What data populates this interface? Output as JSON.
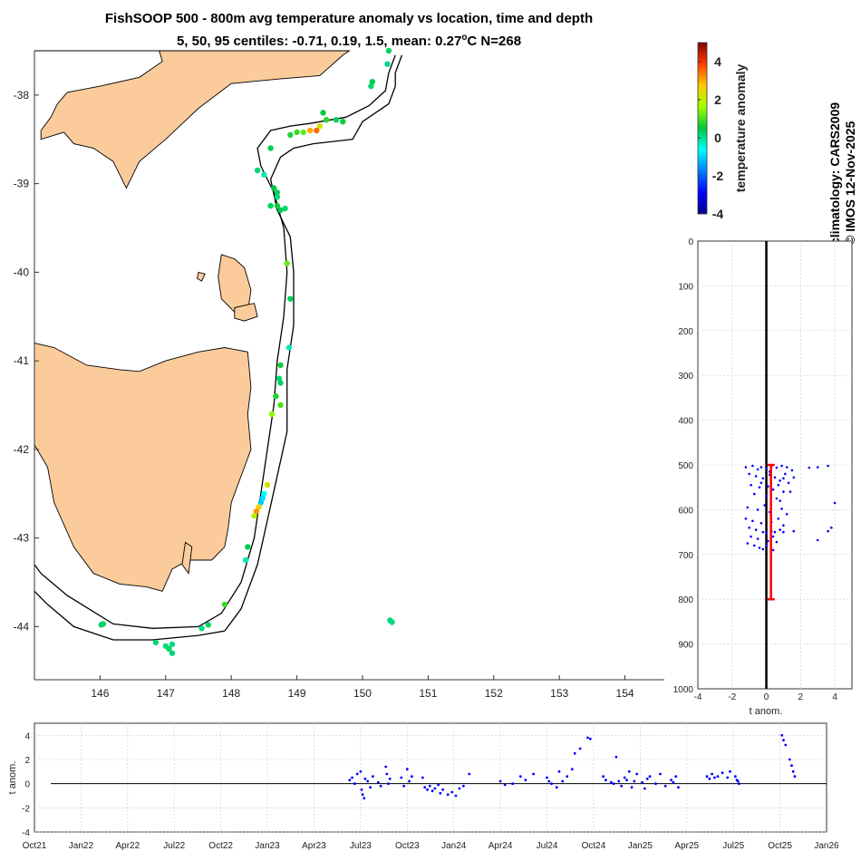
{
  "title": {
    "line1": "FishSOOP 500 - 800m avg temperature anomaly vs location, time and depth",
    "line2_prefix": "5, 50, 95 centiles: -0.71, 0.19, 1.5, mean: 0.27",
    "line2_degree": "o",
    "line2_suffix": "C N=268"
  },
  "credits": {
    "climatology": "climatology: CARS2009",
    "copyright": "© IMOS 12-Nov-2025"
  },
  "colors": {
    "land": "#fbcb9b",
    "coast": "#000000",
    "points_depth": "#0000ff",
    "points_time": "#0000ff",
    "centile_bar": "#ff0000",
    "zero_line": "#000000"
  },
  "chart_data": [
    {
      "type": "scatter",
      "name": "map",
      "xlim": [
        145,
        154.6
      ],
      "ylim": [
        -44.6,
        -37.5
      ],
      "xticks": [
        146,
        147,
        148,
        149,
        150,
        151,
        152,
        153,
        154
      ],
      "yticks": [
        -38,
        -39,
        -40,
        -41,
        -42,
        -43,
        -44
      ],
      "colorbar": {
        "label": "temperature anomaly",
        "range": [
          -4,
          5
        ],
        "ticks": [
          -4,
          -2,
          0,
          2,
          4
        ]
      },
      "points": [
        {
          "lon": 150.4,
          "lat": -37.5,
          "t": 0.3
        },
        {
          "lon": 150.38,
          "lat": -37.65,
          "t": 0.1
        },
        {
          "lon": 150.15,
          "lat": -37.85,
          "t": 0.4
        },
        {
          "lon": 150.13,
          "lat": -37.9,
          "t": 0.2
        },
        {
          "lon": 149.7,
          "lat": -38.3,
          "t": 0.6
        },
        {
          "lon": 149.6,
          "lat": -38.28,
          "t": 0.3
        },
        {
          "lon": 149.45,
          "lat": -38.28,
          "t": 0.8
        },
        {
          "lon": 149.35,
          "lat": -38.35,
          "t": 2.2
        },
        {
          "lon": 149.3,
          "lat": -38.4,
          "t": 3.5
        },
        {
          "lon": 149.2,
          "lat": -38.4,
          "t": 3.0
        },
        {
          "lon": 149.1,
          "lat": -38.42,
          "t": 1.2
        },
        {
          "lon": 149.0,
          "lat": -38.42,
          "t": 0.9
        },
        {
          "lon": 148.9,
          "lat": -38.45,
          "t": 0.7
        },
        {
          "lon": 149.4,
          "lat": -38.2,
          "t": 0.5
        },
        {
          "lon": 148.6,
          "lat": -38.6,
          "t": 0.4
        },
        {
          "lon": 148.4,
          "lat": -38.85,
          "t": 0.2
        },
        {
          "lon": 148.5,
          "lat": -38.9,
          "t": -0.2
        },
        {
          "lon": 148.65,
          "lat": -39.05,
          "t": 0.5
        },
        {
          "lon": 148.7,
          "lat": -39.1,
          "t": 0.3
        },
        {
          "lon": 148.7,
          "lat": -39.15,
          "t": 0.1
        },
        {
          "lon": 148.7,
          "lat": -39.25,
          "t": 0.6
        },
        {
          "lon": 148.75,
          "lat": -39.3,
          "t": 0.4
        },
        {
          "lon": 148.82,
          "lat": -39.28,
          "t": 0.2
        },
        {
          "lon": 148.6,
          "lat": -39.25,
          "t": 0.3
        },
        {
          "lon": 148.85,
          "lat": -39.9,
          "t": 1.2
        },
        {
          "lon": 148.9,
          "lat": -40.3,
          "t": 0.3
        },
        {
          "lon": 148.88,
          "lat": -40.85,
          "t": -0.2
        },
        {
          "lon": 148.75,
          "lat": -41.05,
          "t": 0.6
        },
        {
          "lon": 148.73,
          "lat": -41.2,
          "t": 0.2
        },
        {
          "lon": 148.75,
          "lat": -41.25,
          "t": 0.3
        },
        {
          "lon": 148.68,
          "lat": -41.4,
          "t": 0.7
        },
        {
          "lon": 148.75,
          "lat": -41.5,
          "t": 1.0
        },
        {
          "lon": 148.62,
          "lat": -41.6,
          "t": 1.5
        },
        {
          "lon": 148.55,
          "lat": -42.4,
          "t": 2.3
        },
        {
          "lon": 148.5,
          "lat": -42.5,
          "t": -0.6
        },
        {
          "lon": 148.48,
          "lat": -42.55,
          "t": -0.9
        },
        {
          "lon": 148.45,
          "lat": -42.6,
          "t": -1.1
        },
        {
          "lon": 148.42,
          "lat": -42.65,
          "t": 2.6
        },
        {
          "lon": 148.38,
          "lat": -42.7,
          "t": 3.2
        },
        {
          "lon": 148.35,
          "lat": -42.75,
          "t": 2.0
        },
        {
          "lon": 148.25,
          "lat": -43.1,
          "t": 0.4
        },
        {
          "lon": 148.22,
          "lat": -43.25,
          "t": -0.2
        },
        {
          "lon": 147.9,
          "lat": -43.75,
          "t": 0.9
        },
        {
          "lon": 147.65,
          "lat": -43.98,
          "t": 0.3
        },
        {
          "lon": 147.55,
          "lat": -44.02,
          "t": 0.1
        },
        {
          "lon": 147.1,
          "lat": -44.2,
          "t": 0.1
        },
        {
          "lon": 147.05,
          "lat": -44.25,
          "t": 0.3
        },
        {
          "lon": 147.1,
          "lat": -44.3,
          "t": 0.2
        },
        {
          "lon": 147.0,
          "lat": -44.22,
          "t": 0.1
        },
        {
          "lon": 146.85,
          "lat": -44.18,
          "t": 0.2
        },
        {
          "lon": 146.05,
          "lat": -43.97,
          "t": 0.2
        },
        {
          "lon": 146.02,
          "lat": -43.98,
          "t": 0.3
        },
        {
          "lon": 150.42,
          "lat": -43.93,
          "t": 0.2
        },
        {
          "lon": 150.45,
          "lat": -43.95,
          "t": 0.1
        }
      ]
    },
    {
      "type": "scatter",
      "name": "depth-profile",
      "xlabel": "t anom.",
      "xlim": [
        -4,
        5
      ],
      "ylim": [
        0,
        1000
      ],
      "xticks": [
        -4,
        -2,
        0,
        2,
        4
      ],
      "yticks": [
        0,
        100,
        200,
        300,
        400,
        500,
        600,
        700,
        800,
        900,
        1000
      ],
      "centile_bar": {
        "x": 0.27,
        "y_top": 500,
        "y_bottom": 800
      },
      "points": [
        {
          "t": -1.2,
          "d": 505
        },
        {
          "t": -0.8,
          "d": 502
        },
        {
          "t": -0.5,
          "d": 510
        },
        {
          "t": -0.3,
          "d": 505
        },
        {
          "t": 0.0,
          "d": 508
        },
        {
          "t": 0.3,
          "d": 503
        },
        {
          "t": 0.6,
          "d": 506
        },
        {
          "t": 0.9,
          "d": 502
        },
        {
          "t": 1.2,
          "d": 505
        },
        {
          "t": 1.5,
          "d": 512
        },
        {
          "t": 2.5,
          "d": 506
        },
        {
          "t": 3.0,
          "d": 505
        },
        {
          "t": 3.6,
          "d": 502
        },
        {
          "t": -1.0,
          "d": 520
        },
        {
          "t": -0.6,
          "d": 525
        },
        {
          "t": -0.2,
          "d": 530
        },
        {
          "t": 0.2,
          "d": 522
        },
        {
          "t": 0.5,
          "d": 528
        },
        {
          "t": 0.8,
          "d": 535
        },
        {
          "t": 1.1,
          "d": 520
        },
        {
          "t": 1.3,
          "d": 540
        },
        {
          "t": 1.6,
          "d": 528
        },
        {
          "t": -0.9,
          "d": 545
        },
        {
          "t": -0.4,
          "d": 550
        },
        {
          "t": 0.1,
          "d": 548
        },
        {
          "t": 0.4,
          "d": 555
        },
        {
          "t": 0.7,
          "d": 545
        },
        {
          "t": 1.0,
          "d": 560
        },
        {
          "t": -0.7,
          "d": 565
        },
        {
          "t": 0.0,
          "d": 570
        },
        {
          "t": 0.6,
          "d": 575
        },
        {
          "t": 1.4,
          "d": 560
        },
        {
          "t": 4.0,
          "d": 585
        },
        {
          "t": -1.1,
          "d": 595
        },
        {
          "t": -0.5,
          "d": 600
        },
        {
          "t": 0.2,
          "d": 605
        },
        {
          "t": 0.9,
          "d": 598
        },
        {
          "t": 1.2,
          "d": 610
        },
        {
          "t": -1.2,
          "d": 620
        },
        {
          "t": -0.8,
          "d": 625
        },
        {
          "t": -0.3,
          "d": 630
        },
        {
          "t": 0.3,
          "d": 628
        },
        {
          "t": 0.7,
          "d": 620
        },
        {
          "t": 1.0,
          "d": 635
        },
        {
          "t": -1.0,
          "d": 640
        },
        {
          "t": -0.6,
          "d": 645
        },
        {
          "t": -0.2,
          "d": 650
        },
        {
          "t": 0.0,
          "d": 652
        },
        {
          "t": 0.3,
          "d": 648
        },
        {
          "t": 0.5,
          "d": 650
        },
        {
          "t": 0.8,
          "d": 645
        },
        {
          "t": 1.0,
          "d": 650
        },
        {
          "t": 1.6,
          "d": 648
        },
        {
          "t": 3.6,
          "d": 648
        },
        {
          "t": 3.8,
          "d": 640
        },
        {
          "t": 3.0,
          "d": 668
        },
        {
          "t": -0.9,
          "d": 660
        },
        {
          "t": -0.5,
          "d": 665
        },
        {
          "t": 0.1,
          "d": 670
        },
        {
          "t": 0.4,
          "d": 660
        },
        {
          "t": -0.7,
          "d": 680
        },
        {
          "t": -0.4,
          "d": 685
        },
        {
          "t": -0.2,
          "d": 688
        },
        {
          "t": 0.0,
          "d": 680
        },
        {
          "t": -1.1,
          "d": 675
        },
        {
          "t": 0.6,
          "d": 672
        },
        {
          "t": -0.3,
          "d": 540
        },
        {
          "t": 0.2,
          "d": 515
        },
        {
          "t": -0.1,
          "d": 590
        },
        {
          "t": 0.8,
          "d": 580
        },
        {
          "t": 0.4,
          "d": 690
        },
        {
          "t": 1.0,
          "d": 530
        }
      ]
    },
    {
      "type": "scatter",
      "name": "time-series",
      "ylabel": "t anom.",
      "ylim": [
        -4,
        5
      ],
      "yticks": [
        -4,
        -2,
        0,
        2,
        4
      ],
      "xlim": [
        "2021-10",
        "2026-01"
      ],
      "xticks": [
        "Oct21",
        "Jan22",
        "Apr22",
        "Jul22",
        "Oct22",
        "Jan23",
        "Apr23",
        "Jul23",
        "Oct23",
        "Jan24",
        "Apr24",
        "Jul24",
        "Oct24",
        "Jan25",
        "Apr25",
        "Jul25",
        "Oct25",
        "Jan26"
      ],
      "points": [
        {
          "date": "2023-06-10",
          "t": 0.3
        },
        {
          "date": "2023-06-15",
          "t": 0.5
        },
        {
          "date": "2023-06-20",
          "t": 0.0
        },
        {
          "date": "2023-06-25",
          "t": 0.8
        },
        {
          "date": "2023-07-01",
          "t": 1.0
        },
        {
          "date": "2023-07-03",
          "t": -0.5
        },
        {
          "date": "2023-07-05",
          "t": -0.9
        },
        {
          "date": "2023-07-08",
          "t": -1.2
        },
        {
          "date": "2023-07-10",
          "t": 0.4
        },
        {
          "date": "2023-07-15",
          "t": 0.2
        },
        {
          "date": "2023-07-20",
          "t": -0.3
        },
        {
          "date": "2023-07-25",
          "t": 0.6
        },
        {
          "date": "2023-08-05",
          "t": 0.1
        },
        {
          "date": "2023-08-10",
          "t": -0.2
        },
        {
          "date": "2023-08-20",
          "t": 1.4
        },
        {
          "date": "2023-08-22",
          "t": 0.8
        },
        {
          "date": "2023-08-25",
          "t": 0.0
        },
        {
          "date": "2023-08-28",
          "t": 0.4
        },
        {
          "date": "2023-09-20",
          "t": 0.5
        },
        {
          "date": "2023-09-25",
          "t": -0.2
        },
        {
          "date": "2023-10-01",
          "t": 1.2
        },
        {
          "date": "2023-10-05",
          "t": 0.2
        },
        {
          "date": "2023-10-10",
          "t": 0.6
        },
        {
          "date": "2023-11-01",
          "t": 0.5
        },
        {
          "date": "2023-11-05",
          "t": -0.3
        },
        {
          "date": "2023-11-10",
          "t": -0.5
        },
        {
          "date": "2023-11-15",
          "t": -0.2
        },
        {
          "date": "2023-11-20",
          "t": -0.6
        },
        {
          "date": "2023-11-25",
          "t": -0.4
        },
        {
          "date": "2023-12-01",
          "t": -0.1
        },
        {
          "date": "2023-12-05",
          "t": -0.8
        },
        {
          "date": "2023-12-10",
          "t": -0.5
        },
        {
          "date": "2023-12-20",
          "t": -0.9
        },
        {
          "date": "2023-12-28",
          "t": -0.7
        },
        {
          "date": "2024-01-05",
          "t": -1.0
        },
        {
          "date": "2024-01-12",
          "t": -0.4
        },
        {
          "date": "2024-01-20",
          "t": -0.2
        },
        {
          "date": "2024-02-01",
          "t": 0.8
        },
        {
          "date": "2024-04-01",
          "t": 0.2
        },
        {
          "date": "2024-04-10",
          "t": -0.1
        },
        {
          "date": "2024-04-25",
          "t": 0.0
        },
        {
          "date": "2024-05-10",
          "t": 0.6
        },
        {
          "date": "2024-05-20",
          "t": 0.3
        },
        {
          "date": "2024-06-05",
          "t": 0.8
        },
        {
          "date": "2024-07-01",
          "t": 0.5
        },
        {
          "date": "2024-07-05",
          "t": 0.2
        },
        {
          "date": "2024-07-10",
          "t": 0.0
        },
        {
          "date": "2024-07-20",
          "t": -0.3
        },
        {
          "date": "2024-07-25",
          "t": 1.0
        },
        {
          "date": "2024-08-01",
          "t": 0.2
        },
        {
          "date": "2024-08-10",
          "t": 0.6
        },
        {
          "date": "2024-08-20",
          "t": 1.2
        },
        {
          "date": "2024-08-25",
          "t": 2.5
        },
        {
          "date": "2024-09-05",
          "t": 2.9
        },
        {
          "date": "2024-09-20",
          "t": 3.8
        },
        {
          "date": "2024-09-25",
          "t": 3.7
        },
        {
          "date": "2024-10-20",
          "t": 0.6
        },
        {
          "date": "2024-10-25",
          "t": 0.3
        },
        {
          "date": "2024-11-05",
          "t": 0.1
        },
        {
          "date": "2024-11-10",
          "t": 0.0
        },
        {
          "date": "2024-11-15",
          "t": 2.2
        },
        {
          "date": "2024-11-20",
          "t": 0.2
        },
        {
          "date": "2024-11-25",
          "t": -0.2
        },
        {
          "date": "2024-12-01",
          "t": 0.5
        },
        {
          "date": "2024-12-05",
          "t": 0.3
        },
        {
          "date": "2024-12-10",
          "t": 1.0
        },
        {
          "date": "2024-12-15",
          "t": -0.3
        },
        {
          "date": "2024-12-20",
          "t": 0.2
        },
        {
          "date": "2024-12-25",
          "t": 0.8
        },
        {
          "date": "2025-01-05",
          "t": 0.1
        },
        {
          "date": "2025-01-10",
          "t": -0.4
        },
        {
          "date": "2025-01-15",
          "t": 0.4
        },
        {
          "date": "2025-01-20",
          "t": 0.6
        },
        {
          "date": "2025-02-01",
          "t": 0.0
        },
        {
          "date": "2025-02-10",
          "t": 0.8
        },
        {
          "date": "2025-02-20",
          "t": -0.2
        },
        {
          "date": "2025-03-01",
          "t": 0.3
        },
        {
          "date": "2025-03-05",
          "t": 0.1
        },
        {
          "date": "2025-03-10",
          "t": 0.6
        },
        {
          "date": "2025-03-15",
          "t": -0.3
        },
        {
          "date": "2025-05-10",
          "t": 0.6
        },
        {
          "date": "2025-05-15",
          "t": 0.4
        },
        {
          "date": "2025-05-20",
          "t": 0.8
        },
        {
          "date": "2025-05-25",
          "t": 0.5
        },
        {
          "date": "2025-06-01",
          "t": 0.6
        },
        {
          "date": "2025-06-10",
          "t": 0.9
        },
        {
          "date": "2025-06-20",
          "t": 0.5
        },
        {
          "date": "2025-06-25",
          "t": 1.0
        },
        {
          "date": "2025-07-05",
          "t": 0.6
        },
        {
          "date": "2025-07-08",
          "t": 0.3
        },
        {
          "date": "2025-07-10",
          "t": 0.2
        },
        {
          "date": "2025-07-12",
          "t": 0.0
        },
        {
          "date": "2025-10-05",
          "t": 4.0
        },
        {
          "date": "2025-10-08",
          "t": 3.6
        },
        {
          "date": "2025-10-12",
          "t": 3.2
        },
        {
          "date": "2025-10-20",
          "t": 2.0
        },
        {
          "date": "2025-10-24",
          "t": 1.5
        },
        {
          "date": "2025-10-27",
          "t": 1.0
        },
        {
          "date": "2025-10-30",
          "t": 0.6
        }
      ]
    }
  ]
}
